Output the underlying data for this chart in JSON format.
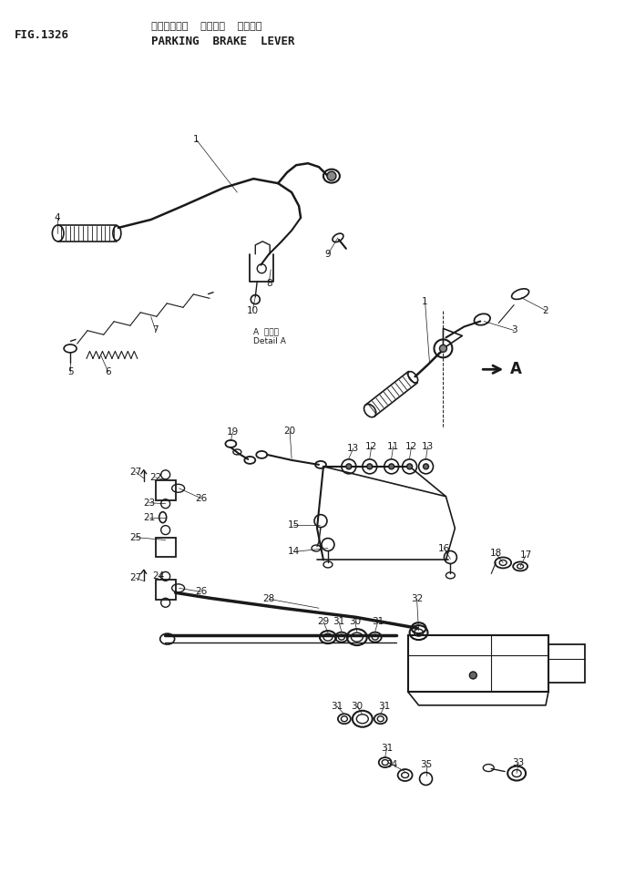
{
  "title_jp": "パーキング゙  ブレーキ  レバー",
  "title_en": "PARKING  BRAKE  LEVER",
  "fig_label": "FIG.1326",
  "bg": "#ffffff",
  "lc": "#1a1a1a",
  "fw": 6.97,
  "fh": 9.59,
  "dpi": 100
}
